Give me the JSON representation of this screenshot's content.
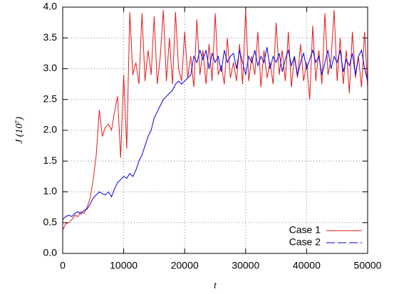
{
  "chart_data": {
    "type": "line",
    "xlabel": "t",
    "ylabel": "J (10⁷)",
    "x": [
      0,
      500,
      1000,
      1500,
      2000,
      2500,
      3000,
      3500,
      4000,
      4500,
      5000,
      5500,
      6000,
      6500,
      7000,
      7500,
      8000,
      8500,
      9000,
      9500,
      10000,
      10500,
      11000,
      11500,
      12000,
      12500,
      13000,
      13500,
      14000,
      14500,
      15000,
      15500,
      16000,
      16500,
      17000,
      17500,
      18000,
      18500,
      19000,
      19500,
      20000,
      20500,
      21000,
      21500,
      22000,
      22500,
      23000,
      23500,
      24000,
      24500,
      25000,
      25500,
      26000,
      26500,
      27000,
      27500,
      28000,
      28500,
      29000,
      29500,
      30000,
      30500,
      31000,
      31500,
      32000,
      32500,
      33000,
      33500,
      34000,
      34500,
      35000,
      35500,
      36000,
      36500,
      37000,
      37500,
      38000,
      38500,
      39000,
      39500,
      40000,
      40500,
      41000,
      41500,
      42000,
      42500,
      43000,
      43500,
      44000,
      44500,
      45000,
      45500,
      46000,
      46500,
      47000,
      47500,
      48000,
      48500,
      49000,
      49500,
      50000
    ],
    "series": [
      {
        "name": "Case 1",
        "color": "#e41a1c",
        "dash": false,
        "values": [
          0.38,
          0.48,
          0.5,
          0.55,
          0.62,
          0.6,
          0.68,
          0.65,
          0.75,
          0.9,
          1.2,
          1.6,
          2.33,
          1.9,
          2.05,
          2.1,
          2.0,
          2.3,
          2.55,
          1.55,
          2.9,
          1.7,
          3.92,
          2.9,
          3.1,
          2.75,
          3.9,
          2.8,
          3.3,
          2.9,
          3.85,
          2.75,
          3.2,
          3.95,
          2.8,
          3.5,
          2.75,
          3.92,
          3.0,
          2.8,
          3.6,
          2.85,
          3.2,
          2.7,
          3.8,
          2.9,
          3.3,
          2.75,
          3.4,
          2.8,
          3.9,
          2.9,
          3.05,
          2.75,
          3.5,
          2.85,
          3.1,
          2.8,
          3.4,
          2.75,
          3.95,
          2.8,
          3.2,
          2.9,
          3.6,
          2.7,
          3.3,
          2.85,
          3.1,
          2.75,
          3.75,
          2.9,
          3.3,
          2.8,
          3.6,
          2.7,
          3.2,
          2.85,
          3.4,
          2.8,
          3.1,
          2.5,
          3.7,
          2.8,
          3.3,
          2.75,
          3.9,
          2.9,
          3.15,
          3.95,
          2.8,
          3.5,
          2.75,
          3.3,
          2.6,
          3.6,
          2.85,
          3.2,
          2.7,
          3.6,
          2.7
        ]
      },
      {
        "name": "Case 2",
        "color": "#0000e0",
        "dash": true,
        "values": [
          0.55,
          0.6,
          0.62,
          0.6,
          0.65,
          0.68,
          0.64,
          0.7,
          0.72,
          0.8,
          0.9,
          0.95,
          1.0,
          0.97,
          0.95,
          1.0,
          0.92,
          1.05,
          1.15,
          1.2,
          1.25,
          1.22,
          1.3,
          1.25,
          1.35,
          1.5,
          1.6,
          1.75,
          1.9,
          2.0,
          2.2,
          2.3,
          2.4,
          2.5,
          2.55,
          2.6,
          2.65,
          2.75,
          2.8,
          2.75,
          2.8,
          2.85,
          2.9,
          3.2,
          3.1,
          3.3,
          3.15,
          3.3,
          3.0,
          3.25,
          3.1,
          3.2,
          2.95,
          3.3,
          3.1,
          3.2,
          3.25,
          3.0,
          3.3,
          3.1,
          2.9,
          3.2,
          3.1,
          3.3,
          3.05,
          3.2,
          3.1,
          3.35,
          3.0,
          3.2,
          3.1,
          3.25,
          2.95,
          3.15,
          3.3,
          3.05,
          3.2,
          2.9,
          3.1,
          3.25,
          3.0,
          3.15,
          3.3,
          3.1,
          3.2,
          2.9,
          3.1,
          3.3,
          3.0,
          3.2,
          3.1,
          3.3,
          2.95,
          3.15,
          3.05,
          3.25,
          2.9,
          3.2,
          3.3,
          3.0,
          2.8
        ]
      }
    ],
    "xlim": [
      0,
      50000
    ],
    "xticks": [
      0,
      10000,
      20000,
      30000,
      40000,
      50000
    ],
    "ylim": [
      0,
      4
    ],
    "yticks": [
      {
        "value": 0,
        "label": "0.0"
      },
      0.5,
      {
        "value": 1,
        "label": "1.0"
      },
      1.5,
      {
        "value": 2,
        "label": "2.0"
      },
      2.5,
      {
        "value": 3,
        "label": "3.0"
      },
      3.5,
      {
        "value": 4,
        "label": "4.0"
      }
    ],
    "grid": true,
    "legend": "lower right"
  }
}
